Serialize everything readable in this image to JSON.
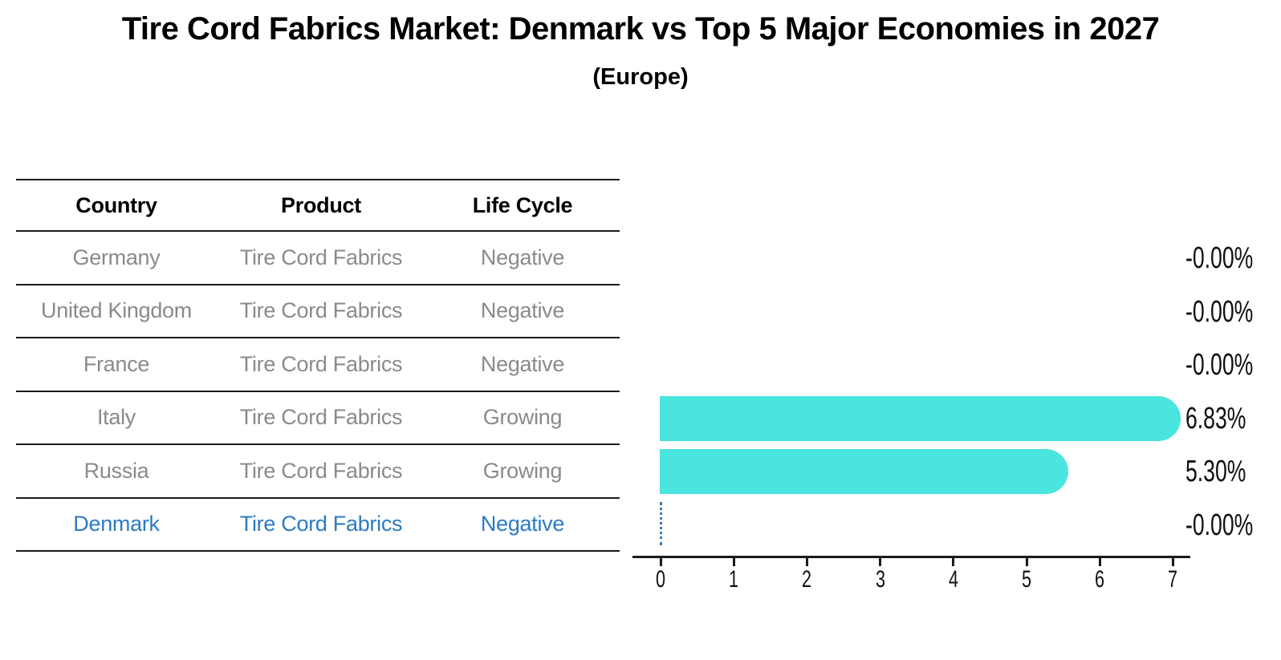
{
  "title": "Tire Cord Fabrics Market: Denmark vs Top 5 Major Economies in 2027",
  "subtitle": "(Europe)",
  "table": {
    "headers": [
      "Country",
      "Product",
      "Life Cycle"
    ],
    "rows": [
      {
        "country": "Germany",
        "product": "Tire Cord Fabrics",
        "life_cycle": "Negative",
        "highlight": false
      },
      {
        "country": "United Kingdom",
        "product": "Tire Cord Fabrics",
        "life_cycle": "Negative",
        "highlight": false
      },
      {
        "country": "France",
        "product": "Tire Cord Fabrics",
        "life_cycle": "Negative",
        "highlight": false
      },
      {
        "country": "Italy",
        "product": "Tire Cord Fabrics",
        "life_cycle": "Growing",
        "highlight": false
      },
      {
        "country": "Russia",
        "product": "Tire Cord Fabrics",
        "life_cycle": "Growing",
        "highlight": false
      },
      {
        "country": "Denmark",
        "product": "Tire Cord Fabrics",
        "life_cycle": "Negative",
        "highlight": true
      }
    ]
  },
  "chart_data": {
    "type": "bar",
    "orientation": "horizontal",
    "title": "Tire Cord Fabrics Market: Denmark vs Top 5 Major Economies in 2027",
    "subtitle": "(Europe)",
    "categories": [
      "Germany",
      "United Kingdom",
      "France",
      "Italy",
      "Russia",
      "Denmark"
    ],
    "values": [
      -0.0,
      -0.0,
      -0.0,
      6.83,
      5.3,
      -0.0
    ],
    "value_labels": [
      "-0.00%",
      "-0.00%",
      "-0.00%",
      "6.83%",
      "5.30%",
      "-0.00%"
    ],
    "x_ticks": [
      0,
      1,
      2,
      3,
      4,
      5,
      6,
      7
    ],
    "xlim": [
      0,
      7.25
    ],
    "grid": false,
    "legend": "none",
    "highlight_index": 5,
    "bar_color": "#49e5de",
    "highlight_text_color": "#2b7ac4",
    "zero_marker_color": "#3d7ab5",
    "axis_color": "#1a1a1a",
    "muted_text_color": "#8a8a8a"
  }
}
